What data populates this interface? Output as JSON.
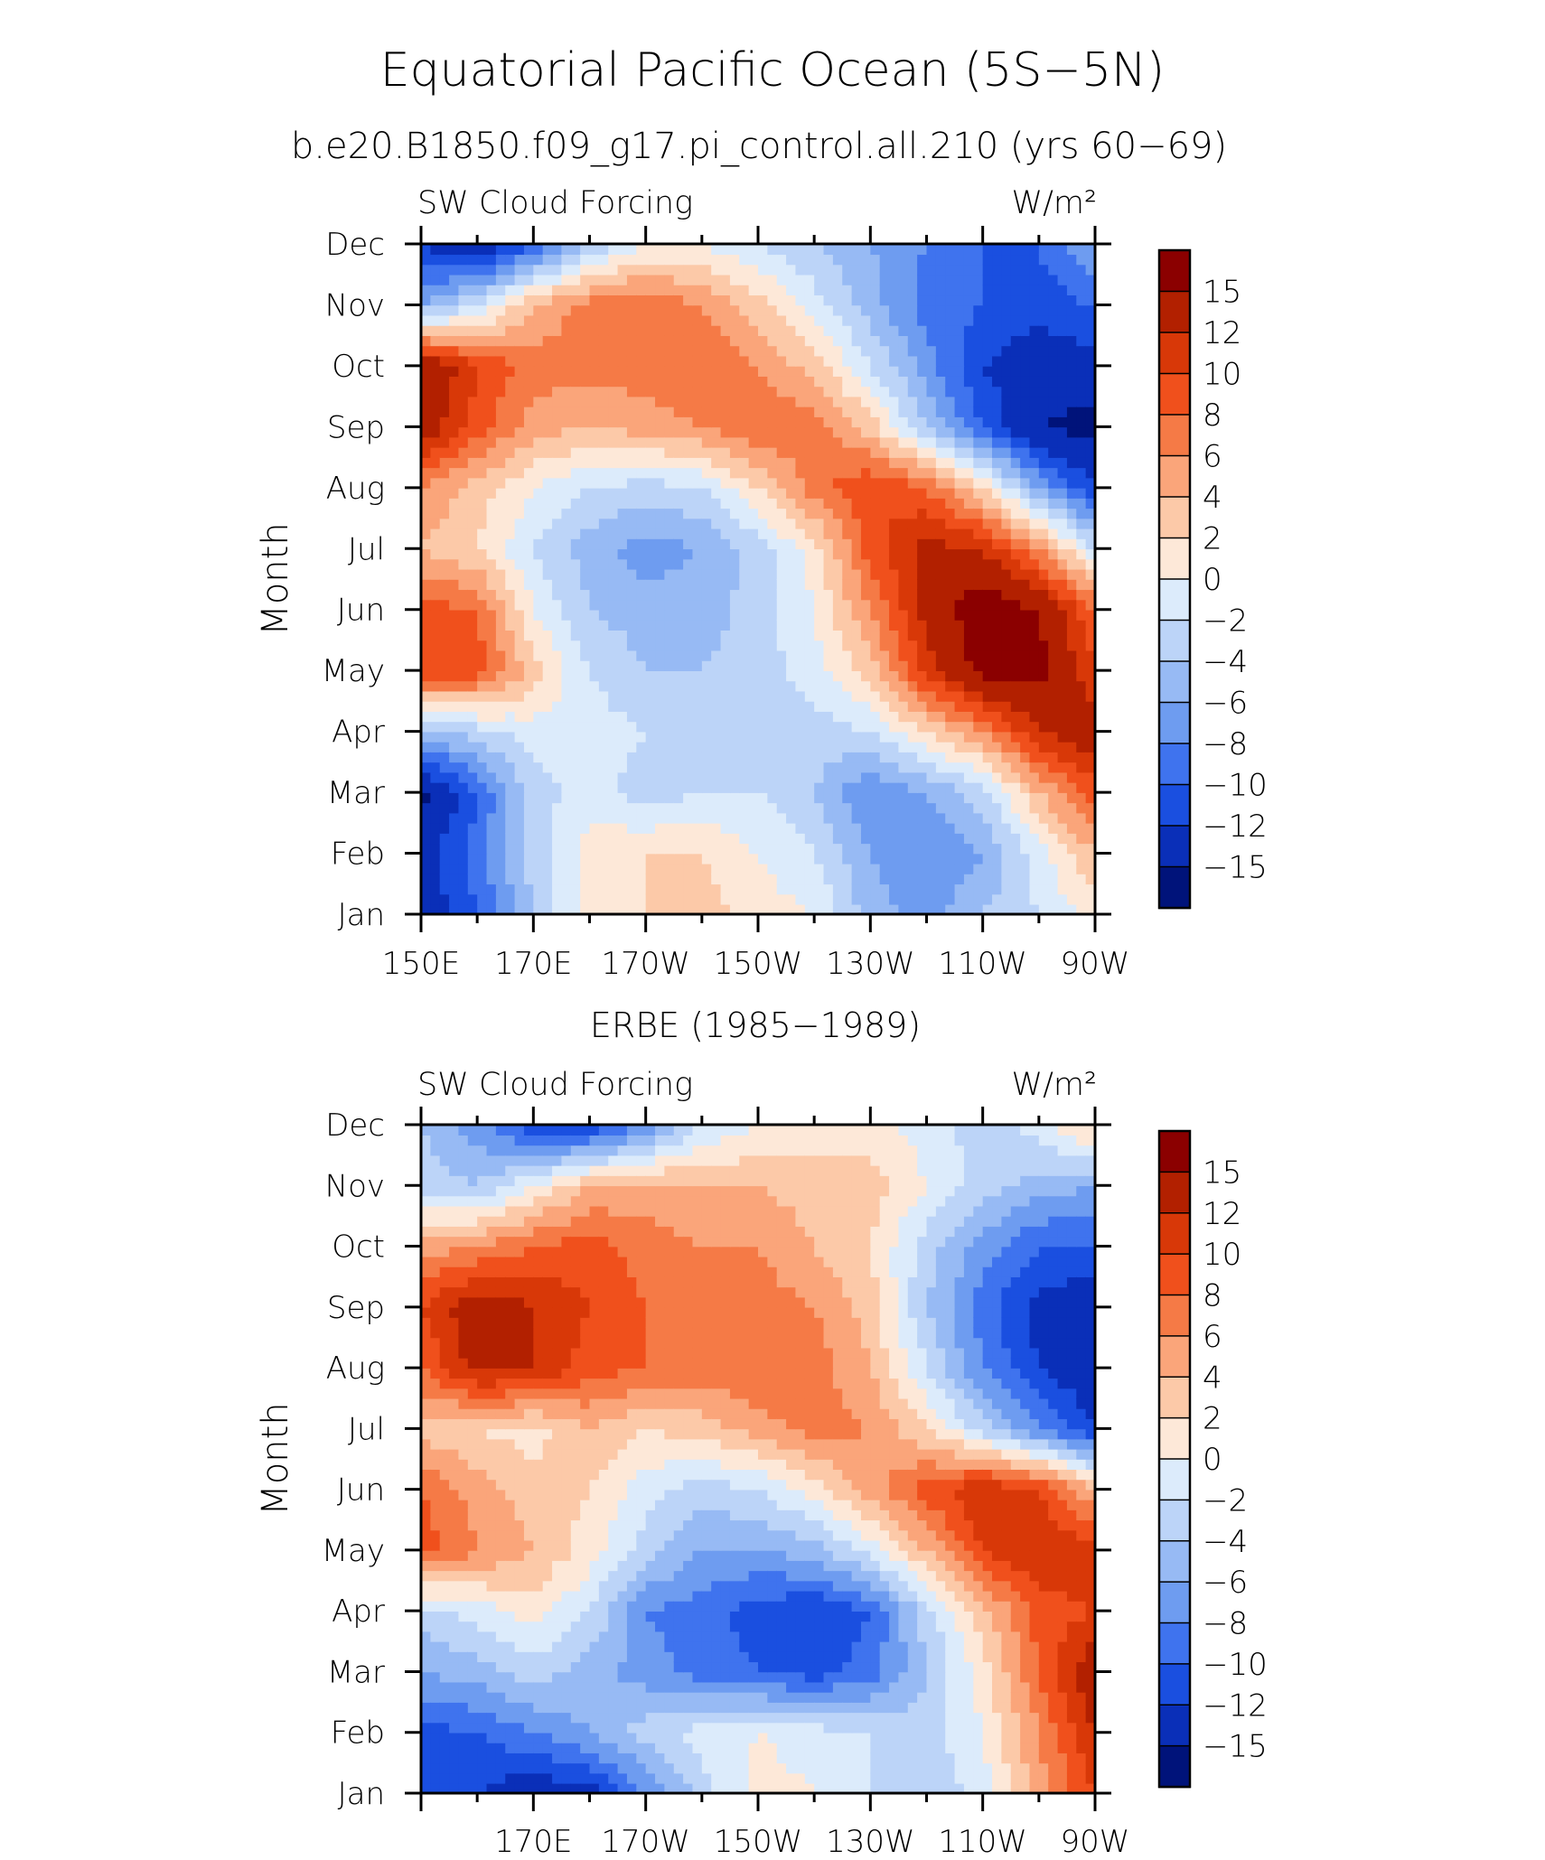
{
  "page": {
    "title": "Equatorial Pacific Ocean (5S−5N)",
    "subtitle": "b.e20.B1850.f09_g17.pi_control.all.210 (yrs 60−69)"
  },
  "colorbar": {
    "labels": [
      "15",
      "12",
      "10",
      "8",
      "6",
      "4",
      "2",
      "0",
      "−2",
      "−4",
      "−6",
      "−8",
      "−10",
      "−12",
      "−15"
    ],
    "values": [
      15,
      12,
      10,
      8,
      6,
      4,
      2,
      0,
      -2,
      -4,
      -6,
      -8,
      -10,
      -12,
      -15
    ],
    "colors": [
      "#8b0000",
      "#b22000",
      "#d83808",
      "#f0501c",
      "#f57a46",
      "#faa57a",
      "#fcc9a8",
      "#fde8d8",
      "#dcebfb",
      "#bcd4f8",
      "#97baf4",
      "#6e9cf0",
      "#3f73ee",
      "#1a4fe0",
      "#0a2fb8",
      "#00137a"
    ]
  },
  "panels": [
    {
      "id": "model",
      "title": "",
      "left_label": "SW Cloud Forcing",
      "right_label": "W/m²",
      "ylabel": "Month"
    },
    {
      "id": "obs",
      "title": "ERBE (1985−1989)",
      "left_label": "SW Cloud Forcing",
      "right_label": "W/m²",
      "ylabel": "Month"
    }
  ],
  "chart_data": [
    {
      "type": "heatmap",
      "title": "",
      "ylabel": "Month",
      "x_ticks": [
        "150E",
        "170E",
        "170W",
        "150W",
        "130W",
        "110W",
        "90W"
      ],
      "y_ticks": [
        "Jan",
        "Feb",
        "Mar",
        "Apr",
        "May",
        "Jun",
        "Jul",
        "Aug",
        "Sep",
        "Oct",
        "Nov",
        "Dec"
      ],
      "x": [
        150,
        160,
        170,
        180,
        190,
        200,
        210,
        220,
        230,
        240,
        250,
        260,
        270
      ],
      "y": [
        "Jan",
        "Feb",
        "Mar",
        "Apr",
        "May",
        "Jun",
        "Jul",
        "Aug",
        "Sep",
        "Oct",
        "Nov",
        "Dec"
      ],
      "z": [
        [
          -14,
          -10,
          -4,
          1,
          2,
          3,
          1,
          0,
          -5,
          -7,
          -4,
          -2,
          1
        ],
        [
          -13,
          -9,
          -3,
          1,
          2,
          2,
          0,
          -2,
          -6,
          -8,
          -6,
          -1,
          4
        ],
        [
          -16,
          -10,
          -3,
          -1,
          -3,
          -2,
          -2,
          -4,
          -8,
          -6,
          -3,
          4,
          9
        ],
        [
          -5,
          -3,
          -1,
          -1,
          -2,
          -4,
          -4,
          -3,
          -2,
          2,
          6,
          12,
          14
        ],
        [
          10,
          9,
          3,
          -2,
          -4,
          -4,
          -3,
          -1,
          3,
          11,
          16,
          16,
          10
        ],
        [
          9,
          8,
          0,
          -4,
          -5,
          -5,
          -3,
          0,
          6,
          13,
          17,
          15,
          8
        ],
        [
          4,
          2,
          -2,
          -5,
          -7,
          -6,
          -3,
          1,
          9,
          13,
          12,
          6,
          -2
        ],
        [
          6,
          3,
          0,
          -2,
          -3,
          -2,
          2,
          7,
          10,
          8,
          2,
          -6,
          -12
        ],
        [
          14,
          9,
          5,
          4,
          5,
          6,
          8,
          7,
          3,
          -4,
          -10,
          -15,
          -16
        ],
        [
          15,
          10,
          7,
          7,
          7,
          8,
          6,
          3,
          -2,
          -7,
          -12,
          -14,
          -13
        ],
        [
          -6,
          -2,
          4,
          7,
          8,
          6,
          3,
          -1,
          -5,
          -9,
          -10,
          -11,
          -10
        ],
        [
          -12,
          -15,
          -10,
          -4,
          0,
          0,
          -2,
          -4,
          -6,
          -8,
          -10,
          -10,
          -6
        ]
      ],
      "levels": [
        -15,
        -12,
        -10,
        -8,
        -6,
        -4,
        -2,
        0,
        2,
        4,
        6,
        8,
        10,
        12,
        15
      ],
      "units": "W/m²"
    },
    {
      "type": "heatmap",
      "title": "ERBE (1985−1989)",
      "ylabel": "Month",
      "x_ticks": [
        "170E",
        "170W",
        "150W",
        "130W",
        "110W",
        "90W"
      ],
      "y_ticks": [
        "Jan",
        "Feb",
        "Mar",
        "Apr",
        "May",
        "Jun",
        "Jul",
        "Aug",
        "Sep",
        "Oct",
        "Nov",
        "Dec"
      ],
      "x": [
        150,
        160,
        170,
        180,
        190,
        200,
        210,
        220,
        230,
        240,
        250,
        260,
        270
      ],
      "y": [
        "Jan",
        "Feb",
        "Mar",
        "Apr",
        "May",
        "Jun",
        "Jul",
        "Aug",
        "Sep",
        "Oct",
        "Nov",
        "Dec"
      ],
      "z": [
        [
          -10,
          -12,
          -14,
          -13,
          -8,
          -3,
          1,
          0,
          -2,
          -4,
          -1,
          5,
          10
        ],
        [
          -11,
          -10,
          -8,
          -6,
          -3,
          -1,
          0,
          -1,
          -2,
          -3,
          0,
          6,
          12
        ],
        [
          -6,
          -5,
          -3,
          -5,
          -7,
          -9,
          -10,
          -11,
          -9,
          -4,
          1,
          8,
          14
        ],
        [
          -3,
          -1,
          1,
          -2,
          -8,
          -9,
          -11,
          -12,
          -10,
          -3,
          3,
          9,
          10
        ],
        [
          9,
          6,
          4,
          1,
          -3,
          -6,
          -6,
          -5,
          -1,
          4,
          10,
          12,
          11
        ],
        [
          8,
          5,
          3,
          2,
          -1,
          -3,
          -2,
          1,
          5,
          9,
          12,
          10,
          4
        ],
        [
          3,
          2,
          1,
          4,
          2,
          3,
          5,
          7,
          6,
          2,
          -3,
          -8,
          -12
        ],
        [
          8,
          13,
          12,
          9,
          8,
          7,
          8,
          7,
          4,
          -2,
          -8,
          -12,
          -14
        ],
        [
          10,
          14,
          12,
          10,
          8,
          7,
          7,
          6,
          3,
          -4,
          -9,
          -13,
          -14
        ],
        [
          5,
          6,
          8,
          9,
          7,
          6,
          6,
          4,
          2,
          -3,
          -7,
          -10,
          -10
        ],
        [
          -3,
          -4,
          0,
          4,
          5,
          4,
          4,
          3,
          3,
          0,
          -3,
          -5,
          -6
        ],
        [
          -4,
          -7,
          -12,
          -12,
          -8,
          -2,
          0,
          1,
          1,
          -1,
          -3,
          -1,
          3
        ]
      ],
      "levels": [
        -15,
        -12,
        -10,
        -8,
        -6,
        -4,
        -2,
        0,
        2,
        4,
        6,
        8,
        10,
        12,
        15
      ],
      "units": "W/m²"
    }
  ]
}
